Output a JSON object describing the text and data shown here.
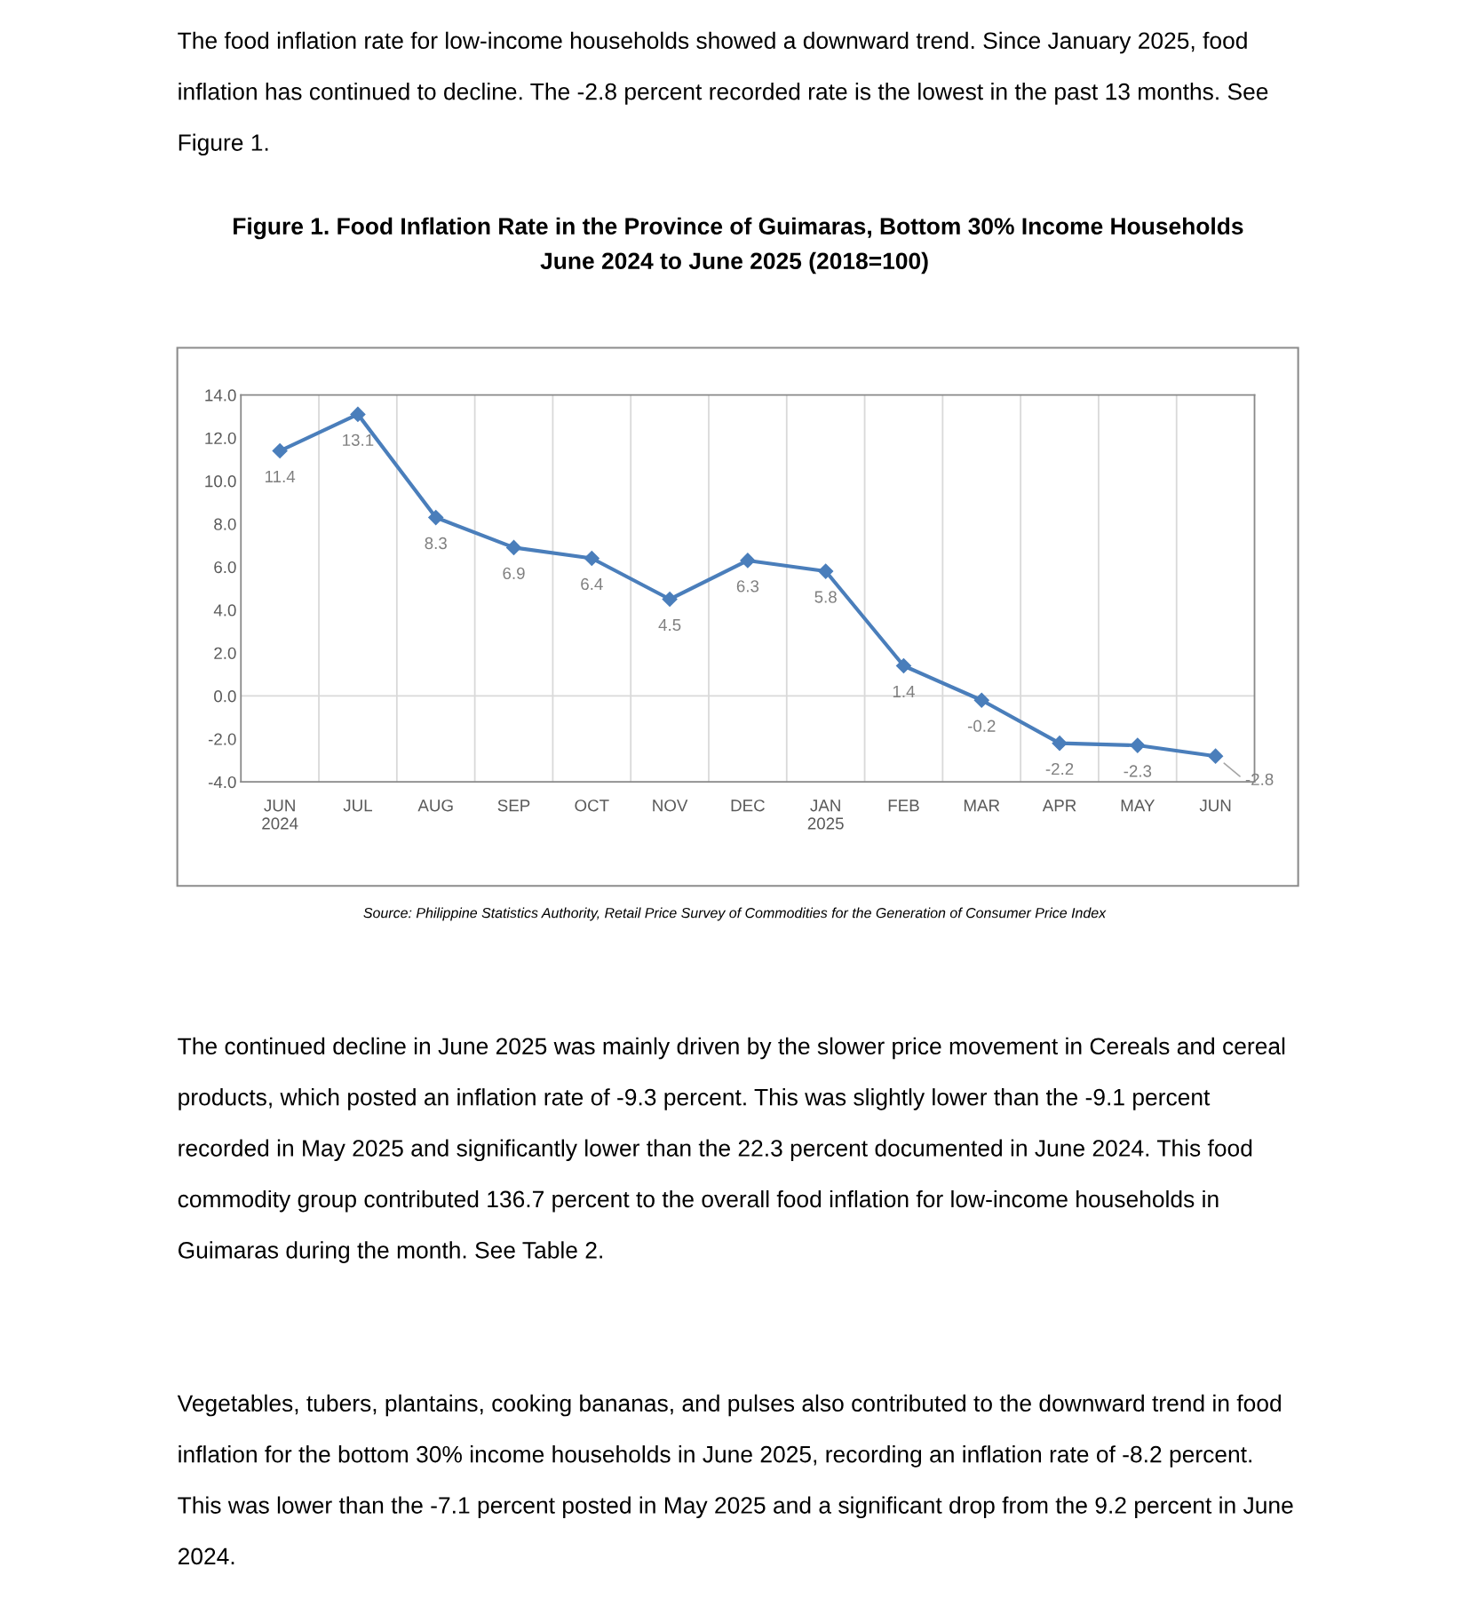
{
  "chart_data": {
    "type": "line",
    "title": "Figure 1. Food Inflation Rate in the Province of Guimaras, Bottom 30% Income Households",
    "subtitle": "June 2024 to June 2025 (2018=100)",
    "categories": [
      "JUN\n2024",
      "JUL",
      "AUG",
      "SEP",
      "OCT",
      "NOV",
      "DEC",
      "JAN\n2025",
      "FEB",
      "MAR",
      "APR",
      "MAY",
      "JUN"
    ],
    "series": [
      {
        "color": "#4a7ebb",
        "values": [
          11.4,
          13.1,
          8.3,
          6.9,
          6.4,
          4.5,
          6.3,
          5.8,
          1.4,
          -0.2,
          -2.2,
          -2.3,
          -2.8
        ]
      }
    ],
    "ylim": [
      -4,
      14
    ],
    "yticks": [
      {
        "value": -4,
        "label": "-4.0"
      },
      {
        "value": -2,
        "label": "-2.0"
      },
      {
        "value": 0,
        "label": "0.0"
      },
      {
        "value": 2,
        "label": "2.0"
      },
      {
        "value": 4,
        "label": "4.0"
      },
      {
        "value": 6,
        "label": "6.0"
      },
      {
        "value": 8,
        "label": "8.0"
      },
      {
        "value": 10,
        "label": "10.0"
      },
      {
        "value": 12,
        "label": "12.0"
      },
      {
        "value": 14,
        "label": "14.0"
      }
    ],
    "ref_lines": [
      {
        "axis": "y",
        "value": 0,
        "color": "#d9d9d9"
      }
    ],
    "grid": "x",
    "marker": "diamond",
    "line_style": "solid",
    "data_labels": true,
    "annotations": [
      "The food inflation rate for low-income households showed a downward trend. Since January 2025, food inflation has continued to decline. The -2.8 percent recorded rate is the lowest in the past 13 months. See Figure 1.",
      "Source: Philippine Statistics Authority, Retail Price Survey of Commodities for the Generation of Consumer Price Index",
      "The continued decline in June 2025 was mainly driven by the slower price movement in Cereals and cereal products, which posted an inflation rate of -9.3 percent. This was slightly lower than the -9.1 percent recorded in May 2025 and significantly lower than the 22.3 percent documented in June 2024. This food commodity group contributed 136.7 percent to the overall food inflation for low-income households in Guimaras during the month. See Table 2.",
      "Vegetables, tubers, plantains, cooking bananas, and pulses also contributed to the downward trend in food inflation for the bottom 30% income households in June 2025, recording an inflation rate of -8.2 percent. This was lower than the -7.1 percent posted in May 2025 and a significant drop from the 9.2 percent in June 2024."
    ]
  }
}
